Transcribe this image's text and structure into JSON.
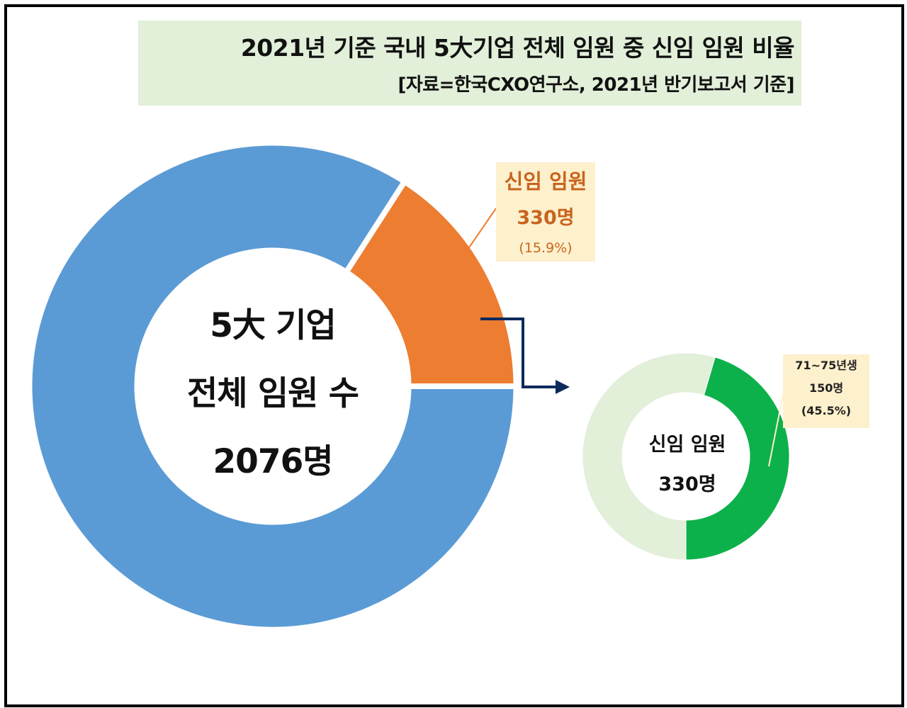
{
  "title": "2021년 기준 국내 5大기업 전체 임원 중 신임 임원 비율",
  "subtitle": "[자료=한국CXO연구소, 2021년 반기보고서 기준]",
  "colors": {
    "total_blue": "#5b9bd5",
    "new_orange": "#ed7d31",
    "inset_green": "#0db14b",
    "inset_light": "#e2efd9",
    "title_bg": "#e2efd9",
    "callout_bg": "#fdf0cc",
    "arrow": "#0b2a5b"
  },
  "center": {
    "line1": "5大 기업",
    "line2": "전체 임원 수",
    "line3": "2076명"
  },
  "new_callout": {
    "label": "신임 임원",
    "count": "330명",
    "pct": "(15.9%)"
  },
  "inset": {
    "center_line1": "신임 임원",
    "center_line2": "330명",
    "callout_line1": "71~75년생",
    "callout_line2": "150명",
    "callout_line3": "(45.5%)"
  },
  "chart_data": [
    {
      "type": "pie",
      "title": "2021년 기준 국내 5大기업 전체 임원 중 신임 임원 비율",
      "total": 2076,
      "slices": [
        {
          "label": "신임 임원",
          "value": 330,
          "percent": 15.9
        },
        {
          "label": "",
          "value": 1746,
          "percent": 84.1
        }
      ]
    },
    {
      "type": "pie",
      "total": 330,
      "slices": [
        {
          "label": "71~75년생",
          "value": 150,
          "percent": 45.5
        },
        {
          "label": "",
          "value": 180,
          "percent": 54.5
        }
      ]
    }
  ]
}
